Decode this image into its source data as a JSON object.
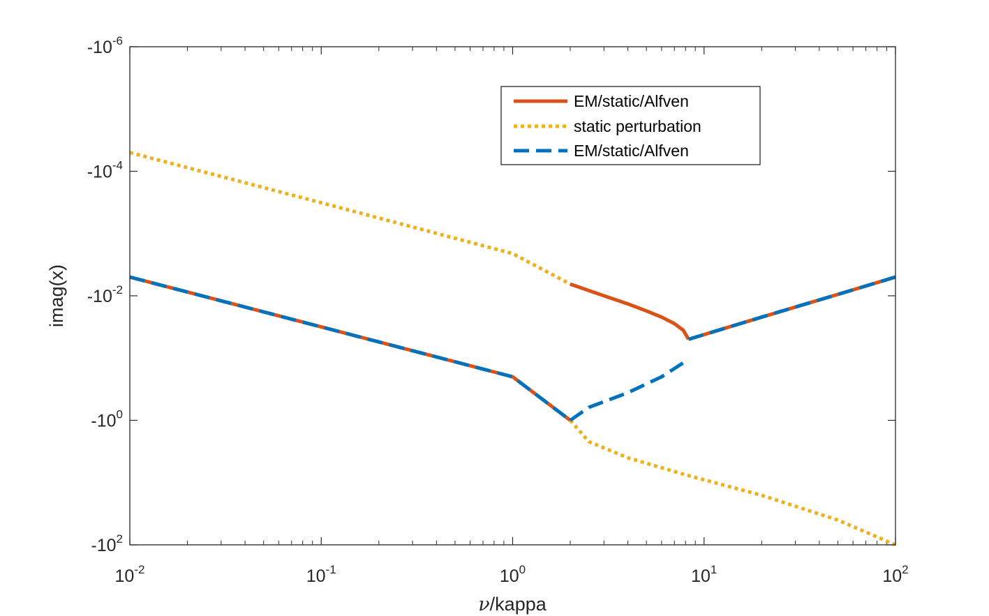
{
  "chart_data": {
    "type": "line",
    "xscale": "log",
    "yscale": "negative-log",
    "xlim": [
      0.01,
      100
    ],
    "ylim_exponent": [
      -6,
      2
    ],
    "xlabel": "kappa",
    "xlabel_symbol": "ν",
    "xlabel_sep": "/",
    "ylabel": "imag(x)",
    "x_ticks": [
      {
        "base": "10",
        "exp": "-2",
        "value": 0.01
      },
      {
        "base": "10",
        "exp": "-1",
        "value": 0.1
      },
      {
        "base": "10",
        "exp": "0",
        "value": 1
      },
      {
        "base": "10",
        "exp": "1",
        "value": 10
      },
      {
        "base": "10",
        "exp": "2",
        "value": 100
      }
    ],
    "y_ticks": [
      {
        "base": "-10",
        "exp": "-6",
        "value": -1e-06
      },
      {
        "base": "-10",
        "exp": "-4",
        "value": -0.0001
      },
      {
        "base": "-10",
        "exp": "-2",
        "value": -0.01
      },
      {
        "base": "-10",
        "exp": "0",
        "value": -1
      },
      {
        "base": "-10",
        "exp": "2",
        "value": -100
      }
    ],
    "series": [
      {
        "name": "EM/static/Alfven",
        "style": "solid",
        "color": "#D95319",
        "segments": [
          [
            [
              0.01,
              -0.005
            ],
            [
              0.1,
              -0.0316
            ],
            [
              1,
              -0.2
            ],
            [
              2,
              -1
            ]
          ],
          [
            [
              2,
              -0.0065
            ],
            [
              3,
              -0.01
            ],
            [
              4,
              -0.0135
            ],
            [
              5,
              -0.0175
            ],
            [
              6,
              -0.022
            ],
            [
              7,
              -0.028
            ],
            [
              7.8,
              -0.036
            ],
            [
              8.3,
              -0.05
            ]
          ],
          [
            [
              8.3,
              -0.05
            ],
            [
              10,
              -0.042
            ],
            [
              20,
              -0.022
            ],
            [
              50,
              -0.0095
            ],
            [
              100,
              -0.005
            ]
          ]
        ]
      },
      {
        "name": "static perturbation",
        "style": "dotted",
        "color": "#EDB120",
        "segments": [
          [
            [
              0.01,
              -5e-05
            ],
            [
              0.1,
              -0.00032
            ],
            [
              1,
              -0.0021
            ],
            [
              2,
              -0.0065
            ]
          ],
          [
            [
              2,
              -1
            ],
            [
              2.5,
              -2.2
            ],
            [
              4,
              -4
            ],
            [
              8,
              -7.5
            ],
            [
              20,
              -16
            ],
            [
              50,
              -40
            ],
            [
              100,
              -100
            ]
          ]
        ]
      },
      {
        "name": "EM/static/Alfven",
        "style": "dashed",
        "color": "#0072BD",
        "segments": [
          [
            [
              0.01,
              -0.005
            ],
            [
              0.1,
              -0.0316
            ],
            [
              1,
              -0.2
            ],
            [
              2,
              -1
            ]
          ],
          [
            [
              2,
              -1
            ],
            [
              2.5,
              -0.62
            ],
            [
              4,
              -0.36
            ],
            [
              6,
              -0.2
            ],
            [
              8.3,
              -0.105
            ]
          ],
          [
            [
              8.3,
              -0.05
            ],
            [
              10,
              -0.042
            ],
            [
              20,
              -0.022
            ],
            [
              50,
              -0.0095
            ],
            [
              100,
              -0.005
            ]
          ]
        ]
      }
    ],
    "legend": [
      {
        "label": "EM/static/Alfven",
        "style": "solid",
        "color": "#D95319"
      },
      {
        "label": "static perturbation",
        "style": "dotted",
        "color": "#EDB120"
      },
      {
        "label": "EM/static/Alfven",
        "style": "dashed",
        "color": "#0072BD"
      }
    ],
    "legend_position": "top-right",
    "grid": false
  }
}
